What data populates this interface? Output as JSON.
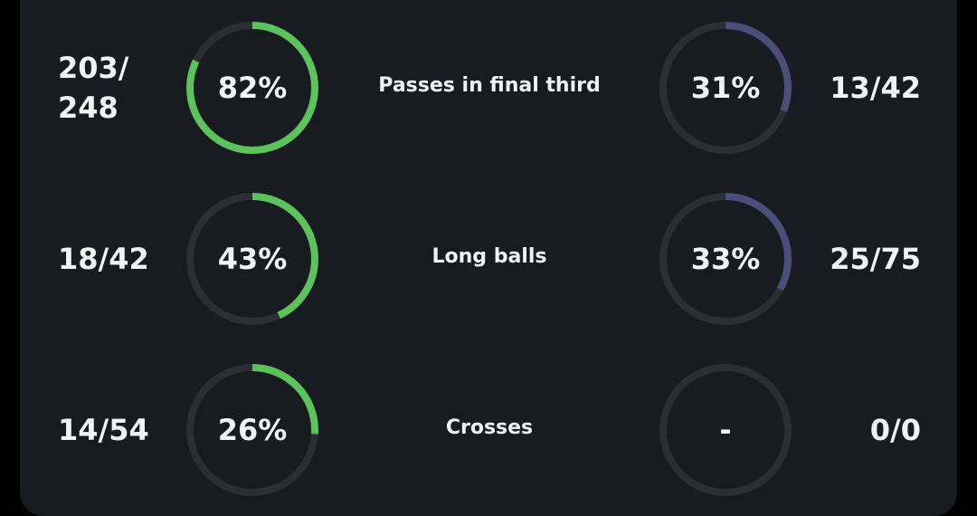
{
  "colors": {
    "background": "#000000",
    "card": "#181b1f",
    "track": "#2b2e33",
    "home": "#5cc25c",
    "away": "#4a4f7a",
    "text": "#f1f3f5"
  },
  "stats": [
    {
      "label": "Passes in final third",
      "home": {
        "value": "203/\n248",
        "pct_text": "82%",
        "pct": 82
      },
      "away": {
        "value": "13/42",
        "pct_text": "31%",
        "pct": 31
      }
    },
    {
      "label": "Long balls",
      "home": {
        "value": "18/42",
        "pct_text": "43%",
        "pct": 43
      },
      "away": {
        "value": "25/75",
        "pct_text": "33%",
        "pct": 33
      }
    },
    {
      "label": "Crosses",
      "home": {
        "value": "14/54",
        "pct_text": "26%",
        "pct": 26
      },
      "away": {
        "value": "0/0",
        "pct_text": "-",
        "pct": 0
      }
    }
  ]
}
